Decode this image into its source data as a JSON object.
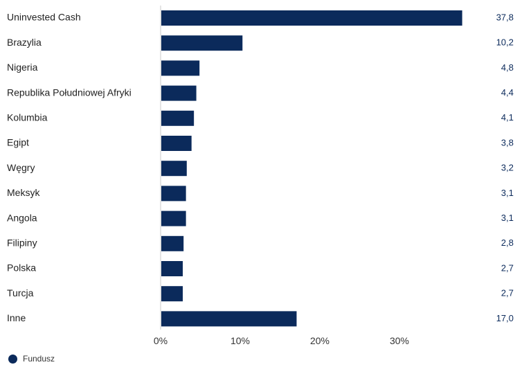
{
  "chart_data": {
    "type": "bar",
    "orientation": "horizontal",
    "categories": [
      "Uninvested Cash",
      "Brazylia",
      "Nigeria",
      "Republika Południowej Afryki",
      "Kolumbia",
      "Egipt",
      "Węgry",
      "Meksyk",
      "Angola",
      "Filipiny",
      "Polska",
      "Turcja",
      "Inne"
    ],
    "series": [
      {
        "name": "Fundusz",
        "values": [
          37.8,
          10.2,
          4.8,
          4.4,
          4.1,
          3.8,
          3.2,
          3.1,
          3.1,
          2.8,
          2.7,
          2.7,
          17.0
        ],
        "labels": [
          "37,8",
          "10,2",
          "4,8",
          "4,4",
          "4,1",
          "3,8",
          "3,2",
          "3,1",
          "3,1",
          "2,8",
          "2,7",
          "2,7",
          "17,0"
        ]
      }
    ],
    "x_ticks": [
      "0%",
      "10%",
      "20%",
      "30%"
    ],
    "x_tick_values": [
      0,
      10,
      20,
      30
    ],
    "xlim": [
      0,
      40
    ],
    "grid": false,
    "legend": "bottom-left",
    "colors": {
      "bar": "#0b2a5b",
      "value_label": "#0b2a5b",
      "axis": "#c8c8c8"
    }
  },
  "legend": {
    "label": "Fundusz"
  }
}
